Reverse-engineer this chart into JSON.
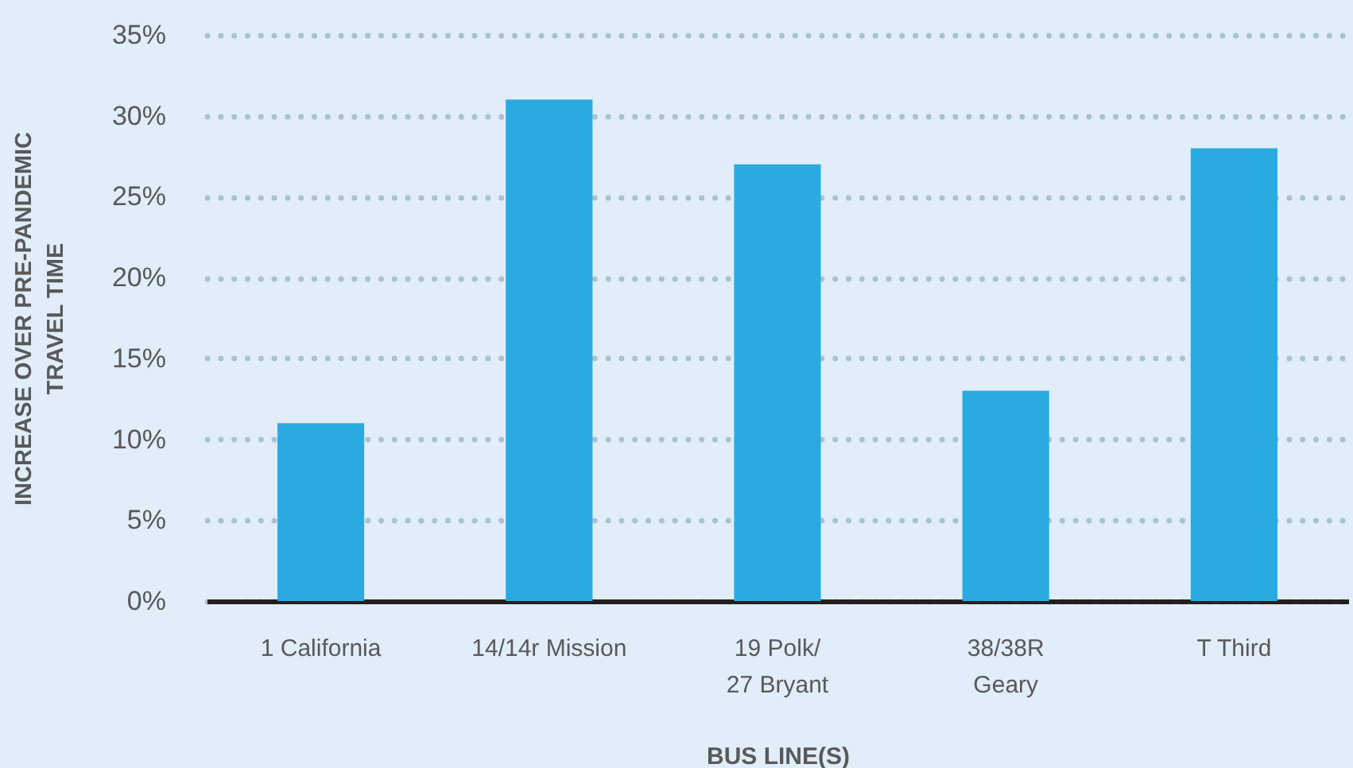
{
  "chart_data": {
    "type": "bar",
    "xlabel": "BUS LINE(S)",
    "ylabel": "INCREASE OVER PRE-PANDEMIC\nTRAVEL TIME",
    "categories": [
      "1 California",
      "14/14r Mission",
      "19 Polk/\n27 Bryant",
      "38/38R\nGeary",
      "T Third"
    ],
    "values": [
      11,
      31,
      27,
      13,
      28
    ],
    "color": "#29abe2",
    "ylim": [
      0,
      35
    ],
    "yticks": [
      {
        "value": 0,
        "label": "0%"
      },
      {
        "value": 5,
        "label": "5%"
      },
      {
        "value": 10,
        "label": "10%"
      },
      {
        "value": 15,
        "label": "15%"
      },
      {
        "value": 20,
        "label": "20%"
      },
      {
        "value": 25,
        "label": "25%"
      },
      {
        "value": 30,
        "label": "30%"
      },
      {
        "value": 35,
        "label": "35%"
      }
    ],
    "grid": "y"
  }
}
